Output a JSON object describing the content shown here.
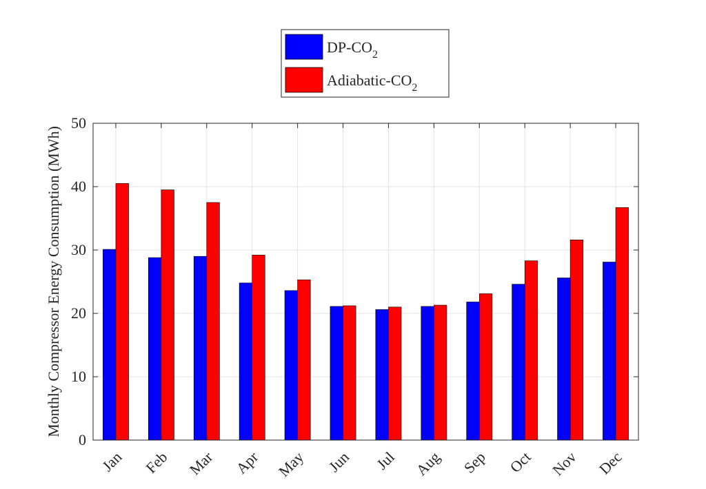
{
  "chart_data": {
    "type": "bar",
    "categories": [
      "Jan",
      "Feb",
      "Mar",
      "Apr",
      "May",
      "Jun",
      "Jul",
      "Aug",
      "Sep",
      "Oct",
      "Nov",
      "Dec"
    ],
    "series": [
      {
        "name": "DP-CO",
        "name_subscript": "2",
        "color": "#0000ff",
        "values": [
          30.1,
          28.8,
          29.0,
          24.8,
          23.6,
          21.1,
          20.6,
          21.1,
          21.8,
          24.6,
          25.6,
          28.1
        ]
      },
      {
        "name": "Adiabatic-CO",
        "name_subscript": "2",
        "color": "#ff0000",
        "values": [
          40.5,
          39.5,
          37.5,
          29.2,
          25.3,
          21.2,
          21.0,
          21.3,
          23.1,
          28.3,
          31.6,
          36.7
        ]
      }
    ],
    "ylabel": "Monthly Compressor Energy Consumption (MWh)",
    "ylim": [
      0,
      50
    ],
    "yticks": [
      0,
      10,
      20,
      30,
      40,
      50
    ],
    "grid": true,
    "legend_position": "top-center"
  }
}
